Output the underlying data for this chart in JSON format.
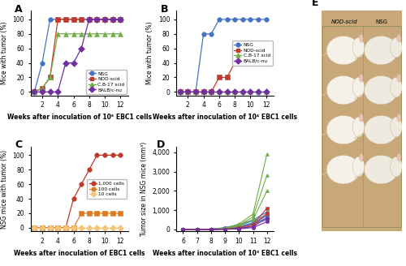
{
  "panel_A": {
    "title": "A",
    "xlabel": "Weeks after inoculation of 10⁵ EBC1 cells",
    "ylabel": "Mice with tumor (%)",
    "xlim": [
      0.5,
      13
    ],
    "ylim": [
      -5,
      112
    ],
    "xticks": [
      2,
      4,
      6,
      8,
      10,
      12
    ],
    "yticks": [
      0,
      20,
      40,
      60,
      80,
      100
    ],
    "series": [
      {
        "label": "NSG",
        "color": "#4472C4",
        "marker": "o",
        "markersize": 4,
        "x": [
          1,
          2,
          3,
          4,
          5,
          6,
          7,
          8,
          9,
          10,
          11,
          12
        ],
        "y": [
          0,
          40,
          100,
          100,
          100,
          100,
          100,
          100,
          100,
          100,
          100,
          100
        ]
      },
      {
        "label": "NOD-scid",
        "color": "#C0392B",
        "marker": "s",
        "markersize": 4,
        "x": [
          1,
          2,
          3,
          4,
          5,
          6,
          7,
          8,
          9,
          10,
          11,
          12
        ],
        "y": [
          0,
          5,
          20,
          100,
          100,
          100,
          100,
          100,
          100,
          100,
          100,
          100
        ]
      },
      {
        "label": "C.B-17 scid",
        "color": "#70AD47",
        "marker": "^",
        "markersize": 4,
        "x": [
          1,
          2,
          3,
          4,
          5,
          6,
          7,
          8,
          9,
          10,
          11,
          12
        ],
        "y": [
          0,
          5,
          20,
          80,
          80,
          80,
          80,
          80,
          80,
          80,
          80,
          80
        ]
      },
      {
        "label": "BALB/c-nu",
        "color": "#7030A0",
        "marker": "D",
        "markersize": 4,
        "x": [
          1,
          2,
          3,
          4,
          5,
          6,
          7,
          8,
          9,
          10,
          11,
          12
        ],
        "y": [
          0,
          0,
          0,
          0,
          40,
          40,
          60,
          100,
          100,
          100,
          100,
          100
        ]
      }
    ]
  },
  "panel_B": {
    "title": "B",
    "xlabel": "Weeks after inoculation of 10⁴ EBC1 cells",
    "ylabel": "Mice with tumor (%)",
    "xlim": [
      0.5,
      13
    ],
    "ylim": [
      -5,
      112
    ],
    "xticks": [
      2,
      4,
      6,
      8,
      10,
      12
    ],
    "yticks": [
      0,
      20,
      40,
      60,
      80,
      100
    ],
    "series": [
      {
        "label": "NSG",
        "color": "#4472C4",
        "marker": "o",
        "markersize": 4,
        "x": [
          1,
          2,
          3,
          4,
          5,
          6,
          7,
          8,
          9,
          10,
          11,
          12
        ],
        "y": [
          0,
          0,
          0,
          80,
          80,
          100,
          100,
          100,
          100,
          100,
          100,
          100
        ]
      },
      {
        "label": "NOD-scid",
        "color": "#C0392B",
        "marker": "s",
        "markersize": 4,
        "x": [
          1,
          2,
          3,
          4,
          5,
          6,
          7,
          8,
          9,
          10,
          11,
          12
        ],
        "y": [
          0,
          0,
          0,
          0,
          0,
          20,
          20,
          40,
          40,
          40,
          40,
          40
        ]
      },
      {
        "label": "C.B-17 scid",
        "color": "#70AD47",
        "marker": "^",
        "markersize": 4,
        "x": [
          1,
          2,
          3,
          4,
          5,
          6,
          7,
          8,
          9,
          10,
          11,
          12
        ],
        "y": [
          0,
          0,
          0,
          0,
          0,
          0,
          0,
          0,
          0,
          0,
          0,
          0
        ]
      },
      {
        "label": "BALB/c-nu",
        "color": "#7030A0",
        "marker": "D",
        "markersize": 4,
        "x": [
          1,
          2,
          3,
          4,
          5,
          6,
          7,
          8,
          9,
          10,
          11,
          12
        ],
        "y": [
          0,
          0,
          0,
          0,
          0,
          0,
          0,
          0,
          0,
          0,
          0,
          0
        ]
      }
    ]
  },
  "panel_C": {
    "title": "C",
    "xlabel": "Weeks after inoculation of EBC1 cells",
    "ylabel": "NSG mice with tumor (%)",
    "xlim": [
      0.5,
      13
    ],
    "ylim": [
      -5,
      112
    ],
    "xticks": [
      2,
      4,
      6,
      8,
      10,
      12
    ],
    "yticks": [
      0,
      20,
      40,
      60,
      80,
      100
    ],
    "series": [
      {
        "label": "1,000 cells",
        "color": "#C0392B",
        "marker": "o",
        "markersize": 4,
        "x": [
          1,
          2,
          3,
          4,
          5,
          6,
          7,
          8,
          9,
          10,
          11,
          12
        ],
        "y": [
          0,
          0,
          0,
          0,
          0,
          40,
          60,
          80,
          100,
          100,
          100,
          100
        ]
      },
      {
        "label": "100 cells",
        "color": "#E07820",
        "marker": "s",
        "markersize": 4,
        "x": [
          1,
          2,
          3,
          4,
          5,
          6,
          7,
          8,
          9,
          10,
          11,
          12
        ],
        "y": [
          0,
          0,
          0,
          0,
          0,
          0,
          20,
          20,
          20,
          20,
          20,
          20
        ]
      },
      {
        "label": "10 cells",
        "color": "#F5C578",
        "marker": "D",
        "markersize": 4,
        "x": [
          1,
          2,
          3,
          4,
          5,
          6,
          7,
          8,
          9,
          10,
          11,
          12
        ],
        "y": [
          0,
          0,
          0,
          0,
          0,
          0,
          0,
          0,
          0,
          0,
          0,
          0
        ]
      }
    ]
  },
  "panel_D": {
    "title": "D",
    "xlabel": "Weeks after inoculation of 10³ EBC1 cells",
    "ylabel": "Tumor size in NSG mice (mm³)",
    "xlim": [
      5.5,
      12.5
    ],
    "ylim": [
      -100,
      4300
    ],
    "xticks": [
      6,
      7,
      8,
      9,
      10,
      11,
      12
    ],
    "yticks": [
      0,
      1000,
      2000,
      3000,
      4000
    ],
    "yticklabels": [
      "0",
      "1,000",
      "2,000",
      "3,000",
      "4,000"
    ],
    "series": [
      {
        "color": "#4472C4",
        "marker": "o",
        "x": [
          6,
          7,
          8,
          9,
          10,
          11,
          12
        ],
        "y": [
          0,
          0,
          10,
          50,
          120,
          280,
          500
        ]
      },
      {
        "color": "#4472C4",
        "marker": "o",
        "x": [
          6,
          7,
          8,
          9,
          10,
          11,
          12
        ],
        "y": [
          0,
          0,
          15,
          80,
          200,
          450,
          750
        ]
      },
      {
        "color": "#4472C4",
        "marker": "D",
        "x": [
          6,
          7,
          8,
          9,
          10,
          11,
          12
        ],
        "y": [
          0,
          0,
          5,
          30,
          100,
          300,
          600
        ]
      },
      {
        "color": "#4472C4",
        "marker": "o",
        "x": [
          6,
          7,
          8,
          9,
          10,
          11,
          12
        ],
        "y": [
          0,
          0,
          20,
          100,
          250,
          500,
          900
        ]
      },
      {
        "color": "#4472C4",
        "marker": "o",
        "x": [
          6,
          7,
          8,
          9,
          10,
          11,
          12
        ],
        "y": [
          0,
          0,
          8,
          60,
          150,
          350,
          700
        ]
      },
      {
        "color": "#70AD47",
        "marker": "^",
        "x": [
          6,
          7,
          8,
          9,
          10,
          11,
          12
        ],
        "y": [
          0,
          0,
          10,
          80,
          280,
          800,
          3900
        ]
      },
      {
        "color": "#70AD47",
        "marker": "^",
        "x": [
          6,
          7,
          8,
          9,
          10,
          11,
          12
        ],
        "y": [
          0,
          0,
          8,
          60,
          220,
          650,
          2800
        ]
      },
      {
        "color": "#70AD47",
        "marker": "^",
        "x": [
          6,
          7,
          8,
          9,
          10,
          11,
          12
        ],
        "y": [
          0,
          0,
          5,
          40,
          180,
          500,
          2000
        ]
      },
      {
        "color": "#C0392B",
        "marker": "s",
        "x": [
          6,
          7,
          8,
          9,
          10,
          11,
          12
        ],
        "y": [
          0,
          0,
          5,
          20,
          80,
          250,
          1100
        ]
      },
      {
        "color": "#C0392B",
        "marker": "s",
        "x": [
          6,
          7,
          8,
          9,
          10,
          11,
          12
        ],
        "y": [
          0,
          0,
          5,
          15,
          60,
          180,
          850
        ]
      },
      {
        "color": "#7030A0",
        "marker": "o",
        "x": [
          6,
          7,
          8,
          9,
          10,
          11,
          12
        ],
        "y": [
          0,
          0,
          5,
          10,
          50,
          150,
          600
        ]
      },
      {
        "color": "#7030A0",
        "marker": "o",
        "x": [
          6,
          7,
          8,
          9,
          10,
          11,
          12
        ],
        "y": [
          0,
          0,
          0,
          8,
          30,
          100,
          400
        ]
      }
    ]
  },
  "panel_E": {
    "title": "E",
    "label_left": "NOD-scid",
    "label_right": "NSG",
    "bg_color": "#C8A878",
    "mouse_color_left": "#F5F0E8",
    "mouse_color_right": "#EEEAE0",
    "n_rows": 4
  },
  "background_color": "#FFFFFF"
}
